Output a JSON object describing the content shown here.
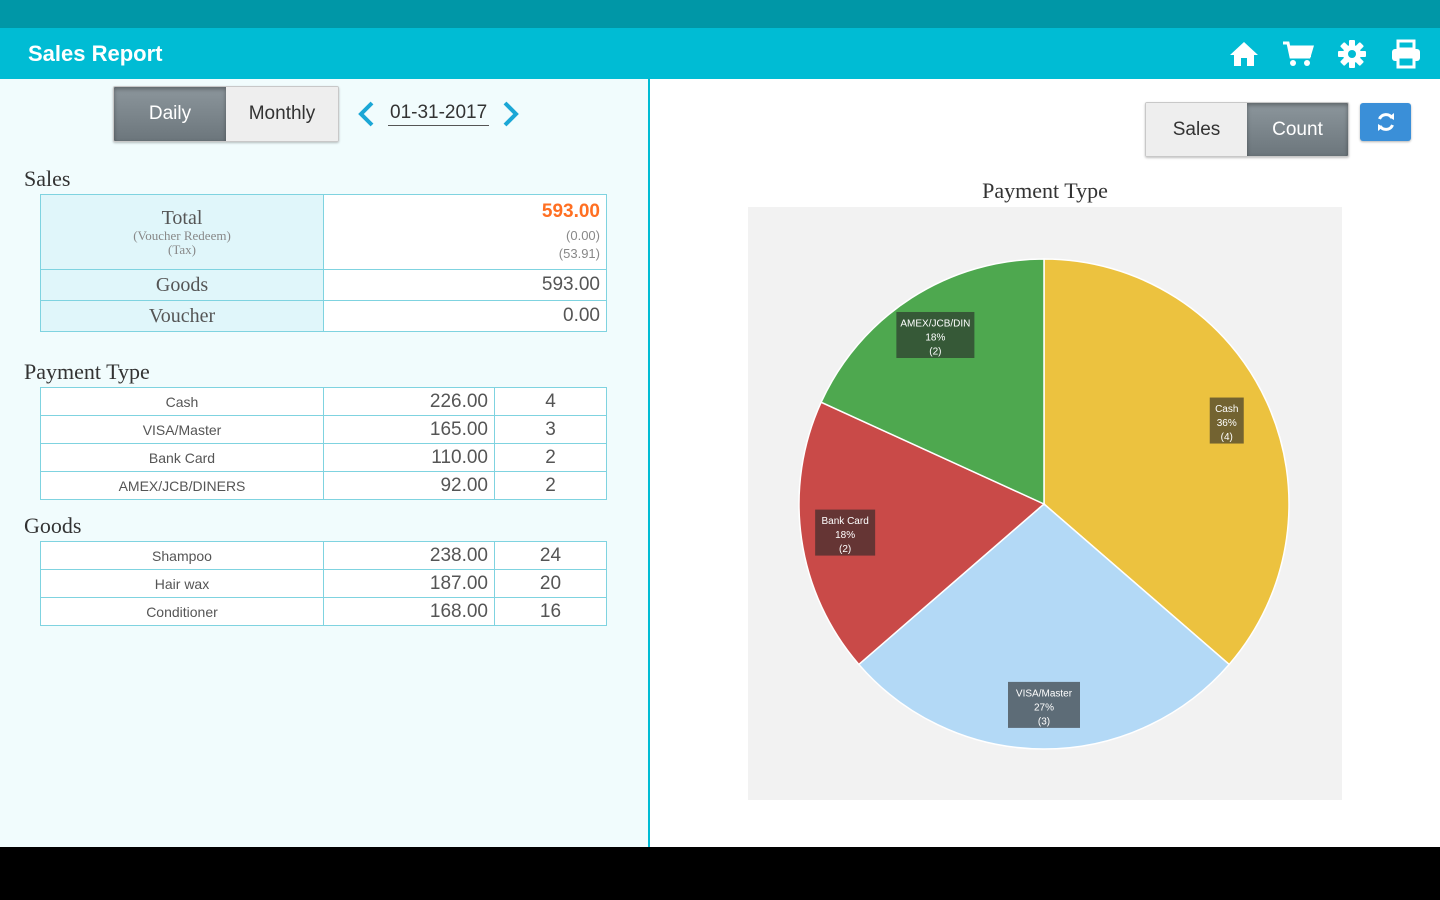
{
  "app": {
    "title": "Sales Report",
    "icons": [
      "home-icon",
      "cart-icon",
      "gear-icon",
      "printer-icon"
    ],
    "accent": "#00bcd4"
  },
  "period": {
    "options": [
      "Daily",
      "Monthly"
    ],
    "selected": "Daily",
    "date": "01-31-2017"
  },
  "sales": {
    "title": "Sales",
    "total_label": "Total",
    "voucher_redeem_label": "(Voucher Redeem)",
    "tax_label": "(Tax)",
    "total_value": "593.00",
    "voucher_redeem_value": "(0.00)",
    "tax_value": "(53.91)",
    "goods_label": "Goods",
    "goods_value": "593.00",
    "voucher_label": "Voucher",
    "voucher_value": "0.00"
  },
  "payment_type": {
    "title": "Payment Type",
    "rows": [
      {
        "name": "Cash",
        "amount": "226.00",
        "count": "4"
      },
      {
        "name": "VISA/Master",
        "amount": "165.00",
        "count": "3"
      },
      {
        "name": "Bank Card",
        "amount": "110.00",
        "count": "2"
      },
      {
        "name": "AMEX/JCB/DINERS",
        "amount": "92.00",
        "count": "2"
      }
    ]
  },
  "goods": {
    "title": "Goods",
    "rows": [
      {
        "name": "Shampoo",
        "amount": "238.00",
        "count": "24"
      },
      {
        "name": "Hair wax",
        "amount": "187.00",
        "count": "20"
      },
      {
        "name": "Conditioner",
        "amount": "168.00",
        "count": "16"
      }
    ]
  },
  "chart_toggle": {
    "options": [
      "Sales",
      "Count"
    ],
    "selected": "Count"
  },
  "chart_data": {
    "type": "pie",
    "title": "Payment Type",
    "slices": [
      {
        "name": "Cash",
        "value": 4,
        "percent_label": "36%",
        "count_label": "(4)",
        "color": "#ecc23f"
      },
      {
        "name": "VISA/Master",
        "value": 3,
        "percent_label": "27%",
        "count_label": "(3)",
        "color": "#b3d9f6"
      },
      {
        "name": "Bank Card",
        "value": 2,
        "percent_label": "18%",
        "count_label": "(2)",
        "color": "#c94a48"
      },
      {
        "name": "AMEX/JCB/DIN",
        "value": 2,
        "percent_label": "18%",
        "count_label": "(2)",
        "color": "#4ea84f"
      }
    ]
  }
}
